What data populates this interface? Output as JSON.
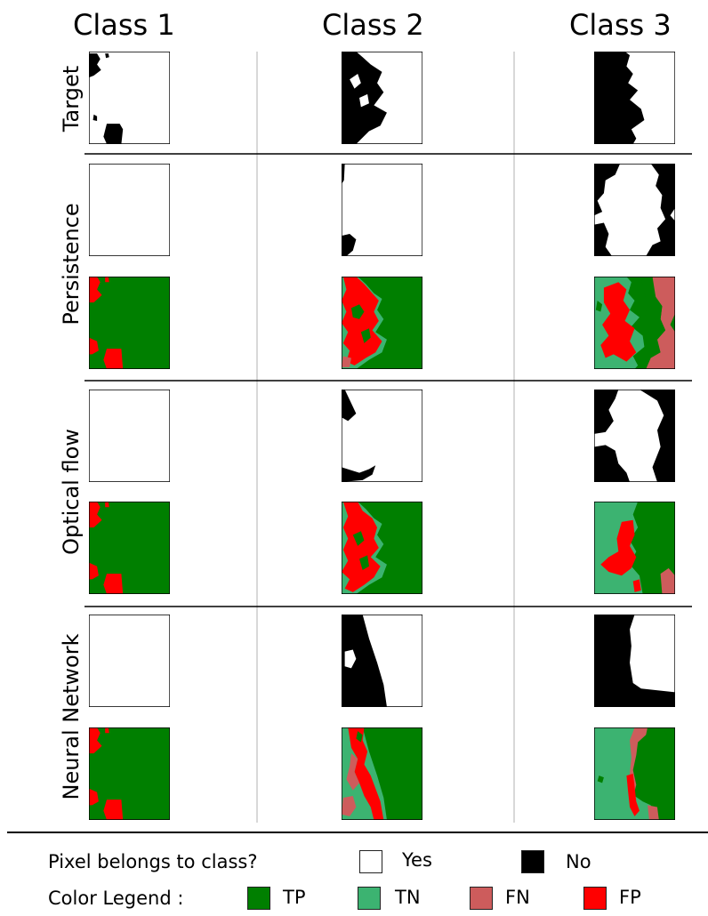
{
  "columns": [
    "Class 1",
    "Class 2",
    "Class 3"
  ],
  "row_labels": {
    "target": "Target",
    "persistence": "Persistence",
    "optical_flow": "Optical flow",
    "neural_network": "Neural Network"
  },
  "legend": {
    "question": "Pixel belongs to class?",
    "yes_label": "Yes",
    "no_label": "No",
    "color_title": "Color Legend :",
    "tp_label": "TP",
    "tn_label": "TN",
    "fn_label": "FN",
    "fp_label": "FP"
  },
  "colors": {
    "yes": "#ffffff",
    "no": "#000000",
    "tp": "#007f00",
    "tn": "#3cb371",
    "fn": "#cd5c5c",
    "fp": "#ff0000"
  }
}
